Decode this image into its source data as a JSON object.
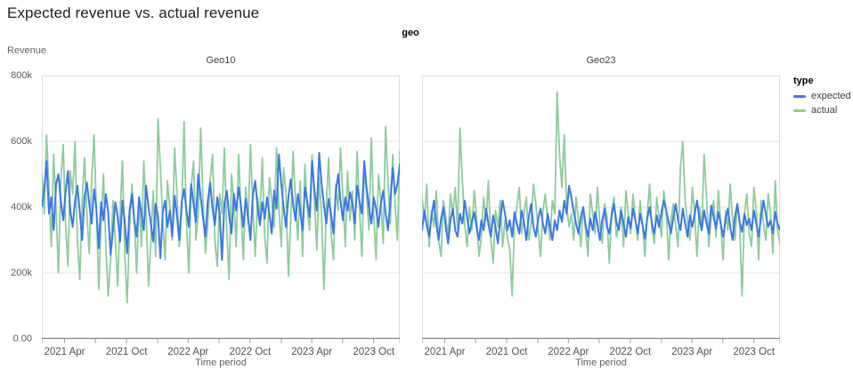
{
  "page": {
    "title": "Expected revenue vs. actual revenue"
  },
  "facet_dimension_label": "geo",
  "legend": {
    "title": "type",
    "position": "right",
    "items": [
      {
        "label": "expected",
        "color": "#3b78e5"
      },
      {
        "label": "actual",
        "color": "#8fcb9d"
      }
    ]
  },
  "axes": {
    "y_title": "Revenue",
    "x_title": "Time period",
    "y_ticks": [
      "800k",
      "600k",
      "400k",
      "200k",
      "0.00"
    ],
    "y_tick_values_k": [
      800,
      600,
      400,
      200,
      0
    ],
    "y_max_k": 800,
    "grid": true,
    "x_major_ticks": [
      {
        "date": "2021-04-01",
        "label": "2021 Apr"
      },
      {
        "date": "2021-10-01",
        "label": "2021 Oct"
      },
      {
        "date": "2022-04-01",
        "label": "2022 Apr"
      },
      {
        "date": "2022-10-01",
        "label": "2022 Oct"
      },
      {
        "date": "2023-04-01",
        "label": "2023 Apr"
      },
      {
        "date": "2023-10-01",
        "label": "2023 Oct"
      }
    ],
    "x_minor_ticks": [
      "2021-01-24",
      "2021-07-01",
      "2022-01-01",
      "2022-07-01",
      "2023-01-01",
      "2023-07-01",
      "2023-12-17"
    ]
  },
  "chart_data": [
    {
      "type": "line",
      "title": "Geo10",
      "xlabel": "Time period",
      "ylabel": "Revenue",
      "ylim_k": [
        0,
        800
      ],
      "units": "revenue in thousands (k)",
      "x": {
        "start": "2021-01-24",
        "end": "2023-12-17",
        "interval": "weekly",
        "points": 152
      },
      "series": [
        {
          "name": "expected",
          "color": "#3b78e5",
          "values_k": [
            402,
            455,
            540,
            380,
            430,
            330,
            470,
            500,
            420,
            360,
            445,
            510,
            390,
            340,
            420,
            465,
            385,
            300,
            430,
            475,
            410,
            350,
            455,
            395,
            275,
            415,
            360,
            440,
            385,
            255,
            330,
            415,
            370,
            295,
            420,
            355,
            260,
            390,
            440,
            360,
            310,
            430,
            380,
            330,
            465,
            400,
            350,
            295,
            410,
            370,
            245,
            385,
            420,
            340,
            390,
            310,
            435,
            375,
            300,
            415,
            455,
            390,
            340,
            470,
            410,
            355,
            500,
            430,
            370,
            310,
            420,
            475,
            395,
            345,
            430,
            380,
            240,
            410,
            450,
            375,
            320,
            440,
            390,
            460,
            405,
            340,
            425,
            370,
            300,
            435,
            480,
            400,
            345,
            415,
            365,
            430,
            380,
            320,
            450,
            395,
            560,
            470,
            400,
            340,
            430,
            485,
            410,
            360,
            440,
            390,
            330,
            460,
            415,
            370,
            540,
            450,
            390,
            565,
            475,
            405,
            350,
            425,
            380,
            320,
            445,
            500,
            420,
            360,
            430,
            390,
            445,
            410,
            350,
            465,
            420,
            380,
            540,
            460,
            400,
            350,
            430,
            395,
            340,
            410,
            450,
            385,
            330,
            420,
            520,
            440,
            470,
            530
          ]
        },
        {
          "name": "actual",
          "color": "#8fcb9d",
          "values_k": [
            500,
            380,
            620,
            450,
            280,
            560,
            400,
            200,
            480,
            590,
            350,
            220,
            510,
            440,
            600,
            300,
            180,
            420,
            550,
            380,
            260,
            480,
            620,
            400,
            150,
            350,
            500,
            280,
            130,
            240,
            420,
            300,
            160,
            380,
            540,
            250,
            110,
            330,
            470,
            360,
            200,
            430,
            280,
            540,
            380,
            160,
            300,
            450,
            250,
            670,
            520,
            360,
            240,
            480,
            400,
            300,
            580,
            440,
            280,
            390,
            660,
            350,
            200,
            460,
            540,
            300,
            380,
            640,
            420,
            260,
            350,
            480,
            560,
            300,
            220,
            440,
            380,
            580,
            330,
            180,
            500,
            420,
            280,
            560,
            390,
            240,
            460,
            350,
            590,
            410,
            250,
            430,
            370,
            550,
            310,
            230,
            490,
            420,
            340,
            580,
            400,
            280,
            520,
            440,
            190,
            360,
            570,
            410,
            300,
            480,
            250,
            530,
            390,
            330,
            560,
            420,
            270,
            490,
            380,
            150,
            410,
            550,
            320,
            240,
            470,
            390,
            580,
            430,
            280,
            510,
            360,
            450,
            300,
            570,
            400,
            250,
            520,
            440,
            330,
            610,
            380,
            240,
            500,
            420,
            290,
            645,
            480,
            350,
            560,
            410,
            300,
            570
          ]
        }
      ]
    },
    {
      "type": "line",
      "title": "Geo23",
      "xlabel": "Time period",
      "ylabel": "Revenue",
      "ylim_k": [
        0,
        800
      ],
      "units": "revenue in thousands (k)",
      "x": {
        "start": "2021-01-24",
        "end": "2023-12-17",
        "interval": "weekly",
        "points": 152
      },
      "series": [
        {
          "name": "expected",
          "color": "#3b78e5",
          "values_k": [
            330,
            390,
            345,
            310,
            370,
            420,
            350,
            300,
            365,
            400,
            340,
            290,
            360,
            395,
            330,
            310,
            380,
            350,
            420,
            370,
            320,
            355,
            385,
            340,
            300,
            360,
            330,
            395,
            350,
            310,
            375,
            340,
            290,
            365,
            420,
            380,
            330,
            360,
            310,
            385,
            350,
            320,
            390,
            355,
            300,
            370,
            410,
            340,
            310,
            365,
            395,
            350,
            320,
            380,
            340,
            300,
            360,
            330,
            390,
            355,
            420,
            380,
            465,
            430,
            385,
            350,
            320,
            370,
            400,
            345,
            310,
            365,
            330,
            385,
            350,
            300,
            360,
            395,
            340,
            320,
            375,
            410,
            355,
            330,
            390,
            350,
            310,
            370,
            335,
            395,
            360,
            320,
            380,
            345,
            305,
            365,
            400,
            350,
            320,
            375,
            340,
            385,
            420,
            390,
            355,
            320,
            370,
            410,
            360,
            330,
            395,
            350,
            310,
            375,
            340,
            380,
            420,
            365,
            330,
            390,
            350,
            320,
            405,
            370,
            335,
            385,
            350,
            310,
            360,
            395,
            340,
            300,
            370,
            410,
            355,
            325,
            380,
            345,
            365,
            330,
            390,
            350,
            310,
            370,
            420,
            380,
            340,
            360,
            320,
            385,
            350,
            330
          ]
        },
        {
          "name": "actual",
          "color": "#8fcb9d",
          "values_k": [
            430,
            360,
            470,
            280,
            390,
            340,
            450,
            300,
            250,
            420,
            370,
            310,
            440,
            380,
            460,
            330,
            640,
            480,
            350,
            280,
            400,
            330,
            450,
            370,
            250,
            310,
            430,
            360,
            480,
            300,
            230,
            390,
            340,
            420,
            280,
            360,
            310,
            270,
            130,
            350,
            400,
            460,
            320,
            380,
            430,
            300,
            350,
            470,
            410,
            330,
            250,
            390,
            440,
            360,
            300,
            420,
            380,
            750,
            560,
            460,
            620,
            400,
            340,
            380,
            300,
            430,
            360,
            280,
            400,
            330,
            250,
            440,
            380,
            320,
            460,
            350,
            290,
            410,
            370,
            230,
            390,
            430,
            310,
            350,
            400,
            280,
            450,
            380,
            320,
            440,
            360,
            300,
            420,
            350,
            250,
            380,
            470,
            330,
            290,
            430,
            370,
            310,
            450,
            390,
            240,
            360,
            410,
            340,
            280,
            520,
            600,
            420,
            350,
            300,
            460,
            380,
            250,
            400,
            340,
            560,
            430,
            280,
            370,
            420,
            310,
            450,
            350,
            240,
            390,
            330,
            470,
            360,
            300,
            410,
            350,
            130,
            380,
            440,
            320,
            280,
            460,
            390,
            240,
            420,
            350,
            300,
            440,
            380,
            260,
            480,
            330,
            290
          ]
        }
      ]
    }
  ]
}
